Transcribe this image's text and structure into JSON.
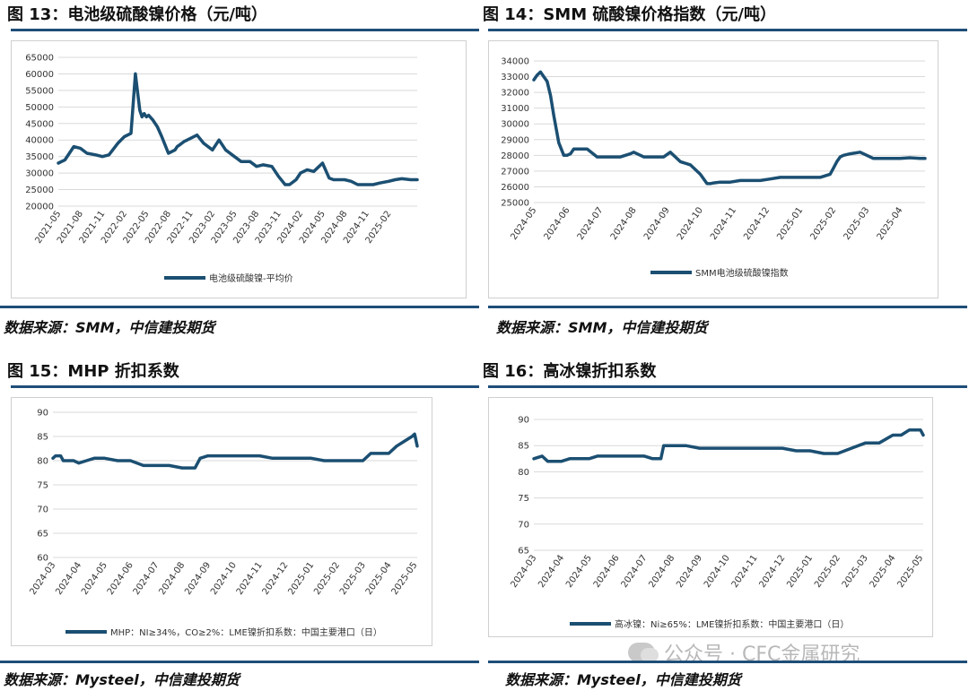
{
  "figures": [
    {
      "title": "图 13：电池级硫酸镍价格（元/吨）",
      "source": "数据来源：SMM，中信建投期货"
    },
    {
      "title": "图 14：SMM 硫酸镍价格指数（元/吨）",
      "source": "数据来源：SMM，中信建投期货"
    },
    {
      "title": "图 15：MHP 折扣系数",
      "source": "数据来源：Mysteel，中信建投期货"
    },
    {
      "title": "图 16：高冰镍折扣系数",
      "source": "数据来源：Mysteel，中信建投期货"
    }
  ],
  "watermark": "公众号 · CFC金属研究",
  "colors": {
    "line": "#1b4f72",
    "rule": "#1f4e79",
    "grid": "#d9d9d9"
  },
  "chart_data": [
    {
      "type": "line",
      "title": "电池级硫酸镍价格（元/吨）",
      "ylim": [
        20000,
        65000
      ],
      "yticks": [
        "20000",
        "25000",
        "30000",
        "35000",
        "40000",
        "45000",
        "50000",
        "55000",
        "60000",
        "65000"
      ],
      "xticks": [
        "2021-05",
        "2021-08",
        "2021-11",
        "2022-02",
        "2022-05",
        "2022-08",
        "2022-11",
        "2023-02",
        "2023-05",
        "2023-08",
        "2023-11",
        "2024-02",
        "2024-05",
        "2024-08",
        "2024-11",
        "2025-02"
      ],
      "xrange": [
        0,
        16.3
      ],
      "legend": "电池级硫酸镍-平均价",
      "series": [
        {
          "name": "电池级硫酸镍-平均价",
          "x": [
            0,
            0.3,
            0.7,
            1,
            1.3,
            1.7,
            2,
            2.3,
            2.7,
            3,
            3.3,
            3.5,
            3.7,
            3.8,
            3.9,
            3.95,
            4.0,
            4.1,
            4.3,
            4.5,
            4.7,
            5.0,
            5.3,
            5.4,
            5.5,
            5.7,
            6,
            6.3,
            6.6,
            7,
            7.3,
            7.6,
            8,
            8.3,
            8.7,
            9,
            9.3,
            9.7,
            10,
            10.3,
            10.5,
            10.8,
            11,
            11.3,
            11.6,
            12,
            12.3,
            12.5,
            12.7,
            13,
            13.3,
            13.6,
            14,
            14.3,
            14.6,
            15,
            15.3,
            15.6,
            16,
            16.3
          ],
          "values": [
            33000,
            34000,
            38000,
            37500,
            36000,
            35500,
            35000,
            35500,
            39000,
            41000,
            42000,
            60000,
            49000,
            47000,
            48000,
            47500,
            47000,
            47500,
            46000,
            44000,
            41000,
            36000,
            37000,
            38000,
            38500,
            39500,
            40500,
            41500,
            39000,
            37000,
            40000,
            37000,
            35000,
            33500,
            33500,
            32000,
            32500,
            32000,
            29000,
            26500,
            26500,
            28000,
            30000,
            31000,
            30500,
            33000,
            28500,
            28000,
            28000,
            28000,
            27500,
            26500,
            26500,
            26500,
            27000,
            27500,
            28000,
            28300,
            28000,
            28000
          ]
        }
      ]
    },
    {
      "type": "line",
      "title": "SMM 硫酸镍价格指数（元/吨）",
      "ylim": [
        25000,
        34000
      ],
      "yticks": [
        "25000",
        "26000",
        "27000",
        "28000",
        "29000",
        "30000",
        "31000",
        "32000",
        "33000",
        "34000"
      ],
      "xticks": [
        "2024-05",
        "2024-06",
        "2024-07",
        "2024-08",
        "2024-09",
        "2024-10",
        "2024-11",
        "2024-12",
        "2025-01",
        "2025-02",
        "2025-03",
        "2025-04"
      ],
      "xrange": [
        0,
        11.75
      ],
      "legend": "SMM电池级硫酸镍指数",
      "series": [
        {
          "name": "SMM电池级硫酸镍指数",
          "x": [
            0,
            0.1,
            0.2,
            0.3,
            0.4,
            0.5,
            0.6,
            0.75,
            0.9,
            1.0,
            1.1,
            1.2,
            1.4,
            1.6,
            1.9,
            2.1,
            2.3,
            2.6,
            2.9,
            3.0,
            3.3,
            3.6,
            3.9,
            4.1,
            4.4,
            4.7,
            5.0,
            5.2,
            5.3,
            5.4,
            5.6,
            5.9,
            6.2,
            6.5,
            6.8,
            7.1,
            7.4,
            7.7,
            8.0,
            8.3,
            8.6,
            8.9,
            9.0,
            9.1,
            9.2,
            9.3,
            9.5,
            9.8,
            10.0,
            10.2,
            10.5,
            10.8,
            11.0,
            11.3,
            11.6,
            11.75
          ],
          "values": [
            32800,
            33100,
            33300,
            33000,
            32700,
            31800,
            30500,
            28800,
            28000,
            28000,
            28100,
            28400,
            28400,
            28400,
            27900,
            27900,
            27900,
            27900,
            28100,
            28200,
            27900,
            27900,
            27900,
            28200,
            27600,
            27400,
            26800,
            26200,
            26200,
            26250,
            26300,
            26300,
            26400,
            26400,
            26400,
            26500,
            26600,
            26600,
            26600,
            26600,
            26600,
            26800,
            27200,
            27600,
            27900,
            28000,
            28100,
            28200,
            28000,
            27800,
            27800,
            27800,
            27800,
            27850,
            27800,
            27800
          ]
        }
      ]
    },
    {
      "type": "line",
      "title": "MHP 折扣系数",
      "ylim": [
        60,
        90
      ],
      "yticks": [
        "60",
        "65",
        "70",
        "75",
        "80",
        "85",
        "90"
      ],
      "xticks": [
        "2024-03",
        "2024-04",
        "2024-05",
        "2024-06",
        "2024-07",
        "2024-08",
        "2024-09",
        "2024-10",
        "2024-11",
        "2024-12",
        "2025-01",
        "2025-02",
        "2025-03",
        "2025-04",
        "2025-05"
      ],
      "xrange": [
        0,
        14.1
      ],
      "legend": "MHP：NI≥34%，CO≥2%：LME镍折扣系数：中国主要港口（日）",
      "series": [
        {
          "name": "MHP：NI≥34%，CO≥2%：LME镍折扣系数：中国主要港口（日）",
          "x": [
            0,
            0.1,
            0.3,
            0.4,
            0.8,
            1.0,
            1.3,
            1.6,
            2.0,
            2.5,
            3.0,
            3.5,
            4.0,
            4.5,
            5.0,
            5.5,
            5.7,
            6.0,
            6.5,
            7.0,
            8.0,
            8.5,
            9.0,
            9.5,
            10.0,
            10.5,
            11.0,
            11.5,
            12.0,
            12.3,
            12.6,
            13.0,
            13.3,
            13.6,
            13.9,
            14.0,
            14.1
          ],
          "values": [
            80.5,
            81,
            81,
            80,
            80,
            79.5,
            80,
            80.5,
            80.5,
            80,
            80,
            79,
            79,
            79,
            78.5,
            78.5,
            80.5,
            81,
            81,
            81,
            81,
            80.5,
            80.5,
            80.5,
            80.5,
            80,
            80,
            80,
            80,
            81.5,
            81.5,
            81.5,
            83,
            84,
            85,
            85.5,
            83
          ]
        }
      ]
    },
    {
      "type": "line",
      "title": "高冰镍折扣系数",
      "ylim": [
        65,
        90
      ],
      "yticks": [
        "65",
        "70",
        "75",
        "80",
        "85",
        "90"
      ],
      "xticks": [
        "2024-03",
        "2024-04",
        "2024-05",
        "2024-06",
        "2024-07",
        "2024-08",
        "2024-09",
        "2024-10",
        "2024-11",
        "2024-12",
        "2025-01",
        "2025-02",
        "2025-03",
        "2025-04",
        "2025-05"
      ],
      "xrange": [
        0,
        14.1
      ],
      "legend": "高冰镍：Ni≥65%：LME镍折扣系数：中国主要港口（日）",
      "series": [
        {
          "name": "高冰镍：Ni≥65%：LME镍折扣系数：中国主要港口（日）",
          "x": [
            0,
            0.3,
            0.5,
            1.0,
            1.3,
            2.0,
            2.3,
            3.0,
            4.0,
            4.3,
            4.6,
            4.7,
            5.0,
            5.5,
            6.0,
            7.0,
            8.0,
            9.0,
            9.5,
            10.0,
            10.5,
            11.0,
            11.5,
            12.0,
            12.5,
            13.0,
            13.3,
            13.6,
            14.0,
            14.1
          ],
          "values": [
            82.5,
            83,
            82,
            82,
            82.5,
            82.5,
            83,
            83,
            83,
            82.5,
            82.5,
            85,
            85,
            85,
            84.5,
            84.5,
            84.5,
            84.5,
            84,
            84,
            83.5,
            83.5,
            84.5,
            85.5,
            85.5,
            87,
            87,
            88,
            88,
            87
          ]
        }
      ]
    }
  ]
}
